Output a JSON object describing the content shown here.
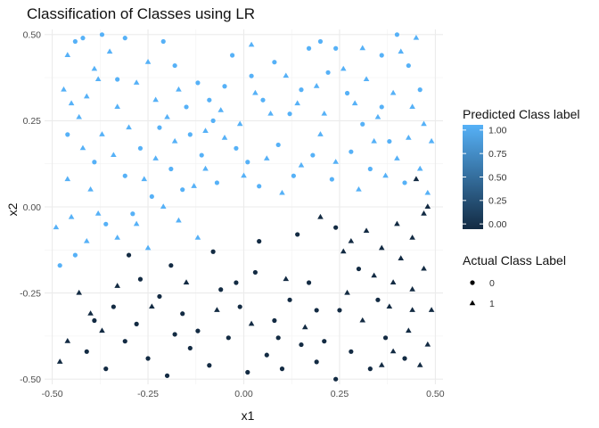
{
  "chart_data": {
    "type": "scatter",
    "title": "Classification of Classes using LR",
    "xlabel": "x1",
    "ylabel": "x2",
    "xlim": [
      -0.52,
      0.52
    ],
    "ylim": [
      -0.515,
      0.515
    ],
    "x_ticks": [
      "-0.50",
      "-0.25",
      "0.00",
      "0.25",
      "0.50"
    ],
    "y_ticks": [
      "-0.50",
      "-0.25",
      "0.00",
      "0.25",
      "0.50"
    ],
    "grid": true,
    "color_legend": {
      "title": "Predicted Class label",
      "ticks": [
        "0.00",
        "0.25",
        "0.50",
        "0.75",
        "1.00"
      ],
      "low_color": "#132B43",
      "high_color": "#56B1F7"
    },
    "shape_legend": {
      "title": "Actual Class Label",
      "entries": [
        {
          "label": "0",
          "shape": "circle"
        },
        {
          "label": "1",
          "shape": "triangle"
        }
      ]
    },
    "points_columns": [
      "x1",
      "x2",
      "actual_class",
      "predicted_class"
    ],
    "points": [
      [
        -0.44,
        0.48,
        0,
        1
      ],
      [
        -0.42,
        0.49,
        0,
        1
      ],
      [
        -0.37,
        0.5,
        0,
        1
      ],
      [
        -0.31,
        0.49,
        0,
        1
      ],
      [
        -0.21,
        0.48,
        0,
        1
      ],
      [
        -0.18,
        0.41,
        0,
        1
      ],
      [
        -0.12,
        0.36,
        0,
        1
      ],
      [
        -0.15,
        0.29,
        0,
        1
      ],
      [
        -0.08,
        0.25,
        0,
        1
      ],
      [
        -0.14,
        0.21,
        0,
        1
      ],
      [
        -0.05,
        0.35,
        0,
        1
      ],
      [
        -0.03,
        0.44,
        0,
        1
      ],
      [
        0.02,
        0.38,
        0,
        1
      ],
      [
        0.05,
        0.31,
        0,
        1
      ],
      [
        0.08,
        0.42,
        0,
        1
      ],
      [
        0.12,
        0.27,
        0,
        1
      ],
      [
        0.17,
        0.46,
        0,
        1
      ],
      [
        0.2,
        0.48,
        0,
        1
      ],
      [
        0.22,
        0.39,
        0,
        1
      ],
      [
        0.24,
        0.46,
        0,
        1
      ],
      [
        0.27,
        0.33,
        0,
        1
      ],
      [
        0.31,
        0.24,
        0,
        1
      ],
      [
        0.36,
        0.44,
        0,
        1
      ],
      [
        0.4,
        0.5,
        0,
        1
      ],
      [
        0.43,
        0.41,
        0,
        1
      ],
      [
        0.46,
        0.34,
        0,
        1
      ],
      [
        -0.46,
        0.21,
        0,
        1
      ],
      [
        -0.39,
        0.13,
        0,
        1
      ],
      [
        -0.31,
        0.09,
        0,
        1
      ],
      [
        -0.27,
        0.17,
        0,
        1
      ],
      [
        -0.22,
        0.23,
        0,
        1
      ],
      [
        -0.19,
        0.11,
        0,
        1
      ],
      [
        -0.16,
        0.05,
        0,
        1
      ],
      [
        -0.11,
        0.15,
        0,
        1
      ],
      [
        -0.07,
        0.07,
        0,
        1
      ],
      [
        -0.02,
        0.17,
        0,
        1
      ],
      [
        0.01,
        0.13,
        0,
        1
      ],
      [
        0.04,
        0.06,
        0,
        1
      ],
      [
        0.09,
        0.18,
        0,
        1
      ],
      [
        0.13,
        0.09,
        0,
        1
      ],
      [
        0.18,
        0.15,
        0,
        1
      ],
      [
        0.23,
        0.08,
        0,
        1
      ],
      [
        0.28,
        0.16,
        0,
        1
      ],
      [
        0.33,
        0.11,
        0,
        1
      ],
      [
        0.38,
        0.19,
        0,
        1
      ],
      [
        0.42,
        0.07,
        0,
        1
      ],
      [
        -0.44,
        -0.14,
        0,
        1
      ],
      [
        -0.36,
        -0.05,
        0,
        1
      ],
      [
        -0.29,
        -0.02,
        0,
        1
      ],
      [
        -0.24,
        0.03,
        0,
        1
      ],
      [
        -0.09,
        0.31,
        0,
        1
      ],
      [
        0.15,
        0.34,
        0,
        1
      ],
      [
        -0.48,
        -0.17,
        0,
        1
      ],
      [
        -0.33,
        0.37,
        0,
        1
      ],
      [
        0.36,
        0.29,
        0,
        1
      ],
      [
        -0.47,
        0.34,
        1,
        1
      ],
      [
        -0.45,
        0.3,
        1,
        1
      ],
      [
        -0.43,
        0.26,
        1,
        1
      ],
      [
        -0.41,
        0.32,
        1,
        1
      ],
      [
        -0.39,
        0.4,
        1,
        1
      ],
      [
        -0.35,
        0.45,
        1,
        1
      ],
      [
        -0.33,
        0.29,
        1,
        1
      ],
      [
        -0.28,
        0.36,
        1,
        1
      ],
      [
        -0.25,
        0.42,
        1,
        1
      ],
      [
        -0.23,
        0.31,
        1,
        1
      ],
      [
        -0.2,
        0.26,
        1,
        1
      ],
      [
        -0.17,
        0.34,
        1,
        1
      ],
      [
        -0.1,
        0.22,
        1,
        1
      ],
      [
        -0.06,
        0.28,
        1,
        1
      ],
      [
        -0.01,
        0.24,
        1,
        1
      ],
      [
        0.03,
        0.33,
        1,
        1
      ],
      [
        0.07,
        0.27,
        1,
        1
      ],
      [
        0.11,
        0.38,
        1,
        1
      ],
      [
        0.14,
        0.3,
        1,
        1
      ],
      [
        0.19,
        0.35,
        1,
        1
      ],
      [
        0.21,
        0.27,
        1,
        1
      ],
      [
        0.26,
        0.4,
        1,
        1
      ],
      [
        0.29,
        0.3,
        1,
        1
      ],
      [
        0.32,
        0.37,
        1,
        1
      ],
      [
        0.35,
        0.26,
        1,
        1
      ],
      [
        0.39,
        0.33,
        1,
        1
      ],
      [
        0.41,
        0.45,
        1,
        1
      ],
      [
        0.44,
        0.29,
        1,
        1
      ],
      [
        0.47,
        0.24,
        1,
        1
      ],
      [
        0.49,
        0.19,
        1,
        1
      ],
      [
        -0.46,
        0.08,
        1,
        1
      ],
      [
        -0.42,
        0.17,
        1,
        1
      ],
      [
        -0.4,
        0.05,
        1,
        1
      ],
      [
        -0.37,
        0.21,
        1,
        1
      ],
      [
        -0.34,
        0.15,
        1,
        1
      ],
      [
        -0.3,
        0.23,
        1,
        1
      ],
      [
        -0.26,
        0.08,
        1,
        1
      ],
      [
        -0.23,
        0.14,
        1,
        1
      ],
      [
        -0.18,
        0.19,
        1,
        1
      ],
      [
        -0.13,
        0.06,
        1,
        1
      ],
      [
        -0.1,
        0.11,
        1,
        1
      ],
      [
        -0.05,
        0.2,
        1,
        1
      ],
      [
        0.0,
        0.09,
        1,
        1
      ],
      [
        0.06,
        0.14,
        1,
        1
      ],
      [
        0.1,
        0.04,
        1,
        1
      ],
      [
        0.15,
        0.12,
        1,
        1
      ],
      [
        0.2,
        0.21,
        1,
        1
      ],
      [
        0.24,
        0.13,
        1,
        1
      ],
      [
        0.3,
        0.05,
        1,
        1
      ],
      [
        0.34,
        0.19,
        1,
        1
      ],
      [
        0.37,
        0.09,
        1,
        1
      ],
      [
        0.4,
        0.14,
        1,
        1
      ],
      [
        0.43,
        0.2,
        1,
        1
      ],
      [
        0.46,
        0.11,
        1,
        1
      ],
      [
        0.48,
        0.04,
        1,
        1
      ],
      [
        -0.49,
        -0.06,
        1,
        1
      ],
      [
        -0.45,
        -0.03,
        1,
        1
      ],
      [
        -0.41,
        -0.1,
        1,
        1
      ],
      [
        -0.38,
        -0.02,
        1,
        1
      ],
      [
        -0.33,
        -0.09,
        1,
        1
      ],
      [
        -0.28,
        -0.05,
        1,
        1
      ],
      [
        -0.25,
        -0.12,
        1,
        1
      ],
      [
        -0.21,
        0.0,
        1,
        1
      ],
      [
        -0.17,
        -0.04,
        1,
        1
      ],
      [
        -0.12,
        -0.09,
        1,
        1
      ],
      [
        -0.46,
        0.44,
        1,
        1
      ],
      [
        -0.38,
        0.37,
        1,
        1
      ],
      [
        0.31,
        0.46,
        1,
        1
      ],
      [
        0.45,
        0.49,
        1,
        1
      ],
      [
        0.02,
        0.47,
        1,
        1
      ],
      [
        -0.34,
        -0.29,
        0,
        0
      ],
      [
        -0.27,
        -0.21,
        0,
        0
      ],
      [
        -0.22,
        -0.26,
        0,
        0
      ],
      [
        -0.16,
        -0.31,
        0,
        0
      ],
      [
        -0.12,
        -0.36,
        0,
        0
      ],
      [
        -0.06,
        -0.24,
        0,
        0
      ],
      [
        -0.01,
        -0.29,
        0,
        0
      ],
      [
        0.03,
        -0.19,
        0,
        0
      ],
      [
        0.08,
        -0.33,
        0,
        0
      ],
      [
        0.12,
        -0.27,
        0,
        0
      ],
      [
        0.17,
        -0.22,
        0,
        0
      ],
      [
        0.21,
        -0.39,
        0,
        0
      ],
      [
        0.25,
        -0.3,
        0,
        0
      ],
      [
        0.3,
        -0.18,
        0,
        0
      ],
      [
        -0.41,
        -0.42,
        0,
        0
      ],
      [
        -0.36,
        -0.47,
        0,
        0
      ],
      [
        -0.31,
        -0.39,
        0,
        0
      ],
      [
        -0.25,
        -0.44,
        0,
        0
      ],
      [
        -0.2,
        -0.49,
        0,
        0
      ],
      [
        -0.14,
        -0.41,
        0,
        0
      ],
      [
        -0.09,
        -0.46,
        0,
        0
      ],
      [
        -0.04,
        -0.38,
        0,
        0
      ],
      [
        0.01,
        -0.48,
        0,
        0
      ],
      [
        0.06,
        -0.43,
        0,
        0
      ],
      [
        0.1,
        -0.47,
        0,
        0
      ],
      [
        0.15,
        -0.4,
        0,
        0
      ],
      [
        0.19,
        -0.45,
        0,
        0
      ],
      [
        0.24,
        -0.5,
        0,
        0
      ],
      [
        0.28,
        -0.42,
        0,
        0
      ],
      [
        0.33,
        -0.47,
        0,
        0
      ],
      [
        0.37,
        -0.38,
        0,
        0
      ],
      [
        0.42,
        -0.44,
        0,
        0
      ],
      [
        -0.3,
        -0.14,
        0,
        0
      ],
      [
        -0.19,
        -0.17,
        0,
        0
      ],
      [
        -0.08,
        -0.13,
        0,
        0
      ],
      [
        0.04,
        -0.1,
        0,
        0
      ],
      [
        0.14,
        -0.08,
        0,
        0
      ],
      [
        0.24,
        -0.06,
        0,
        0
      ],
      [
        -0.39,
        -0.33,
        0,
        0
      ],
      [
        0.35,
        -0.27,
        0,
        0
      ],
      [
        -0.18,
        -0.37,
        0,
        0
      ],
      [
        0.09,
        -0.38,
        0,
        0
      ],
      [
        -0.02,
        -0.22,
        0,
        0
      ],
      [
        0.19,
        -0.3,
        0,
        0
      ],
      [
        -0.28,
        -0.34,
        0,
        0
      ],
      [
        -0.43,
        -0.25,
        1,
        0
      ],
      [
        -0.4,
        -0.31,
        1,
        0
      ],
      [
        -0.37,
        -0.36,
        1,
        0
      ],
      [
        -0.33,
        -0.23,
        1,
        0
      ],
      [
        -0.24,
        -0.29,
        1,
        0
      ],
      [
        -0.15,
        -0.22,
        1,
        0
      ],
      [
        -0.07,
        -0.3,
        1,
        0
      ],
      [
        0.02,
        -0.34,
        1,
        0
      ],
      [
        0.11,
        -0.21,
        1,
        0
      ],
      [
        0.16,
        -0.35,
        1,
        0
      ],
      [
        0.27,
        -0.25,
        1,
        0
      ],
      [
        0.31,
        -0.33,
        1,
        0
      ],
      [
        0.34,
        -0.2,
        1,
        0
      ],
      [
        0.38,
        -0.29,
        1,
        0
      ],
      [
        0.41,
        -0.15,
        1,
        0
      ],
      [
        0.44,
        -0.24,
        1,
        0
      ],
      [
        0.47,
        -0.18,
        1,
        0
      ],
      [
        0.49,
        -0.3,
        1,
        0
      ],
      [
        -0.48,
        -0.45,
        1,
        0
      ],
      [
        -0.46,
        -0.39,
        1,
        0
      ],
      [
        0.39,
        -0.42,
        1,
        0
      ],
      [
        0.43,
        -0.36,
        1,
        0
      ],
      [
        0.46,
        -0.46,
        1,
        0
      ],
      [
        0.48,
        -0.4,
        1,
        0
      ],
      [
        0.36,
        -0.46,
        1,
        0
      ],
      [
        0.28,
        -0.1,
        1,
        0
      ],
      [
        0.32,
        -0.07,
        1,
        0
      ],
      [
        0.36,
        -0.12,
        1,
        0
      ],
      [
        0.4,
        -0.05,
        1,
        0
      ],
      [
        0.44,
        -0.09,
        1,
        0
      ],
      [
        0.47,
        -0.02,
        1,
        0
      ],
      [
        0.2,
        -0.03,
        1,
        0
      ],
      [
        0.26,
        -0.13,
        1,
        0
      ],
      [
        0.39,
        -0.22,
        1,
        0
      ],
      [
        0.44,
        -0.3,
        1,
        0
      ],
      [
        0.45,
        0.08,
        1,
        0
      ],
      [
        0.48,
        0.0,
        1,
        0
      ]
    ]
  }
}
